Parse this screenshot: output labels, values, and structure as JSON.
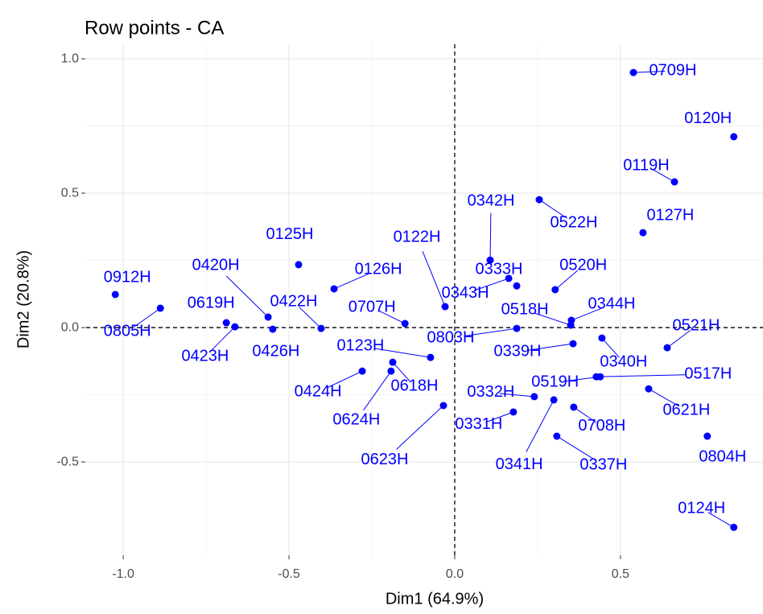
{
  "chart_data": {
    "type": "scatter",
    "title": "Row points - CA",
    "x_label": "Dim1 (64.9%)",
    "y_label": "Dim2 (20.8%)",
    "xlim": [
      -1.112,
      0.93
    ],
    "ylim": [
      -0.847,
      1.054
    ],
    "xticks": [
      {
        "value": -1,
        "label": "-1.0"
      },
      -0.5,
      {
        "value": 0,
        "label": "0.0"
      },
      0.5
    ],
    "yticks": [
      -0.5,
      {
        "value": 0,
        "label": "0.0"
      },
      0.5,
      {
        "value": 1,
        "label": "1.0"
      }
    ],
    "grid": true,
    "hline": 0,
    "vline": 0,
    "series": [
      {
        "color": "#0000ff",
        "labels": [
          "0709H",
          "0120H",
          "0119H",
          "0342H",
          "0522H",
          "0127H",
          "0125H",
          "0122H",
          "0126H",
          "0333H",
          "0343H",
          "0520H",
          "0912H",
          "0805H",
          "0420H",
          "0619H",
          "0422H",
          "0707H",
          "0518H",
          "0344H",
          "0803H",
          "0521H",
          "0423H",
          "0426H",
          "0123H",
          "0339H",
          "0340H",
          "0517H",
          "0424H",
          "0618H",
          "0332H",
          "0519H",
          "0621H",
          "0624H",
          "0331H",
          "0708H",
          "0623H",
          "0341H",
          "0337H",
          "0804H",
          "0124H"
        ],
        "x": [
          0.539,
          0.842,
          0.663,
          0.107,
          0.255,
          0.568,
          -0.471,
          -0.029,
          -0.364,
          0.187,
          0.163,
          0.303,
          -1.024,
          -0.888,
          -0.563,
          -0.689,
          -0.403,
          -0.15,
          0.35,
          0.352,
          0.187,
          0.641,
          -0.663,
          -0.549,
          -0.073,
          0.357,
          0.444,
          0.427,
          -0.279,
          -0.187,
          0.24,
          0.439,
          0.585,
          -0.192,
          0.177,
          0.359,
          -0.034,
          0.299,
          0.308,
          0.762,
          0.842
        ],
        "values": [
          0.949,
          0.71,
          0.542,
          0.251,
          0.476,
          0.353,
          0.234,
          0.078,
          0.144,
          0.155,
          0.183,
          0.141,
          0.123,
          0.072,
          0.039,
          0.018,
          -0.003,
          0.015,
          0.009,
          0.027,
          -0.003,
          -0.075,
          0.003,
          -0.006,
          -0.111,
          -0.06,
          -0.039,
          -0.183,
          -0.162,
          -0.129,
          -0.257,
          -0.183,
          -0.228,
          -0.162,
          -0.314,
          -0.296,
          -0.29,
          -0.269,
          -0.404,
          -0.404,
          -0.743
        ]
      }
    ]
  }
}
